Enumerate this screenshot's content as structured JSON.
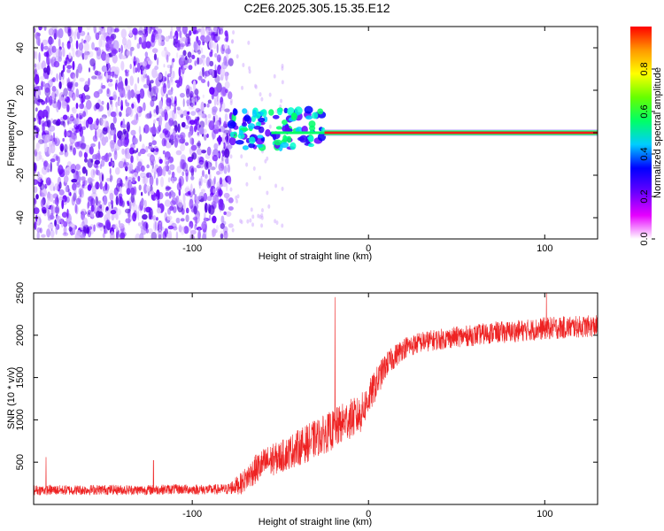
{
  "title": "C2E6.2025.305.15.35.E12",
  "chart_data": [
    {
      "type": "heatmap",
      "name": "spectrogram",
      "xlabel": "Height of straight line (km)",
      "ylabel": "Frequency (Hz)",
      "xlim": [
        -190,
        130
      ],
      "ylim": [
        -50,
        50
      ],
      "xticks": [
        -100,
        0,
        100
      ],
      "yticks": [
        -40,
        -20,
        0,
        20,
        40
      ],
      "xtick_labels": [
        "-100",
        "0",
        "100"
      ],
      "ytick_labels": [
        "-40",
        "-20",
        "0",
        "20",
        "40"
      ],
      "signal_line": {
        "frequency": 0,
        "from_height": -25,
        "to_height": 130
      },
      "noise_region_end": -78,
      "transition_region": [
        -78,
        -25
      ],
      "colorbar": {
        "label": "Normalized spectral amplitude",
        "range": [
          0,
          1
        ],
        "ticks": [
          0.0,
          0.2,
          0.4,
          0.6,
          0.8
        ],
        "tick_labels": [
          "0.0",
          "0.2",
          "0.4",
          "0.6",
          "0.8"
        ],
        "colormap": [
          "#ffffff",
          "#e600ff",
          "#6600ff",
          "#0000ff",
          "#00ccff",
          "#00ff66",
          "#66ff00",
          "#ffff00",
          "#ff9900",
          "#ff0000"
        ]
      }
    },
    {
      "type": "line",
      "name": "snr",
      "xlabel": "Height of straight line (km)",
      "ylabel": "SNR (10 * v/v)",
      "xlim": [
        -190,
        130
      ],
      "ylim": [
        0,
        2500
      ],
      "xticks": [
        -100,
        0,
        100
      ],
      "yticks": [
        500,
        1000,
        1500,
        2000,
        2500
      ],
      "xtick_labels": [
        "-100",
        "0",
        "100"
      ],
      "ytick_labels": [
        "500",
        "1000",
        "1500",
        "2000",
        "2500"
      ],
      "color": "#ee2222",
      "series": [
        {
          "name": "SNR",
          "x": [
            -190,
            -170,
            -150,
            -130,
            -110,
            -90,
            -80,
            -72,
            -65,
            -58,
            -50,
            -42,
            -35,
            -28,
            -20,
            -12,
            -5,
            0,
            5,
            10,
            15,
            20,
            30,
            40,
            50,
            60,
            70,
            80,
            90,
            100,
            110,
            120,
            130
          ],
          "y": [
            170,
            170,
            175,
            170,
            180,
            175,
            180,
            250,
            400,
            500,
            560,
            650,
            720,
            800,
            880,
            1000,
            1050,
            1250,
            1450,
            1650,
            1750,
            1850,
            1920,
            1950,
            1980,
            2000,
            2030,
            2040,
            2060,
            2080,
            2090,
            2100,
            2110
          ],
          "spread": [
            120,
            120,
            120,
            120,
            120,
            120,
            130,
            260,
            350,
            380,
            380,
            420,
            450,
            450,
            480,
            480,
            460,
            400,
            380,
            300,
            280,
            260,
            250,
            250,
            250,
            250,
            260,
            260,
            260,
            270,
            270,
            260,
            260
          ],
          "spikes": [
            {
              "x": -19,
              "y": 2450
            },
            {
              "x": -122,
              "y": 520
            },
            {
              "x": -183,
              "y": 560
            },
            {
              "x": 101,
              "y": 2500
            }
          ]
        }
      ]
    }
  ]
}
